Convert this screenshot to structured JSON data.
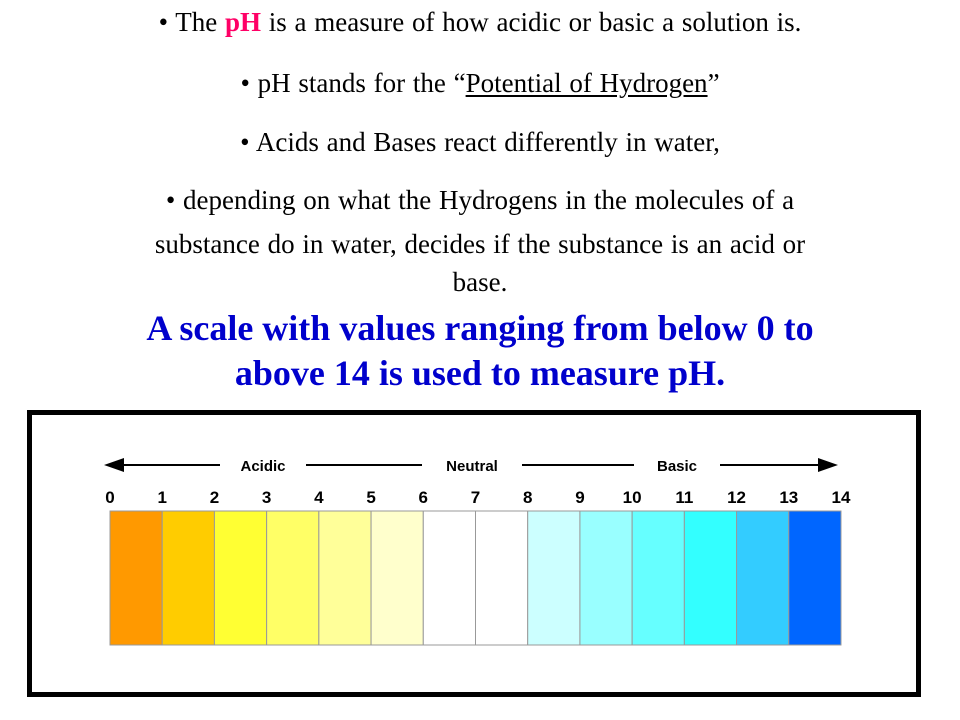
{
  "bullets": {
    "b1": {
      "prefix": "• The ",
      "highlight": "pH",
      "suffix": " is a measure of how acidic or basic a solution is."
    },
    "b2": {
      "prefix": "• pH stands for the “",
      "underlined": "Potential of Hydrogen",
      "suffix": "”"
    },
    "b3": "• Acids and Bases react differently in water,",
    "b4": {
      "line1": "• depending on what the Hydrogens in the molecules of a",
      "line2": "substance do in water, decides if the substance is an acid or",
      "line3": "base."
    }
  },
  "headline": {
    "line1": "A scale with values ranging from below 0 to",
    "line2": "above 14 is used to measure pH."
  },
  "scale": {
    "labels": {
      "acidic": "Acidic",
      "neutral": "Neutral",
      "basic": "Basic"
    },
    "numbers": [
      "0",
      "1",
      "2",
      "3",
      "4",
      "5",
      "6",
      "7",
      "8",
      "9",
      "10",
      "11",
      "12",
      "13",
      "14"
    ],
    "colors": [
      "#ff9900",
      "#ffcc00",
      "#ffff33",
      "#ffff66",
      "#ffff99",
      "#ffffcc",
      "#ffffff",
      "#ffffff",
      "#ccffff",
      "#99ffff",
      "#66ffff",
      "#33ffff",
      "#33ccff",
      "#0066ff"
    ]
  }
}
